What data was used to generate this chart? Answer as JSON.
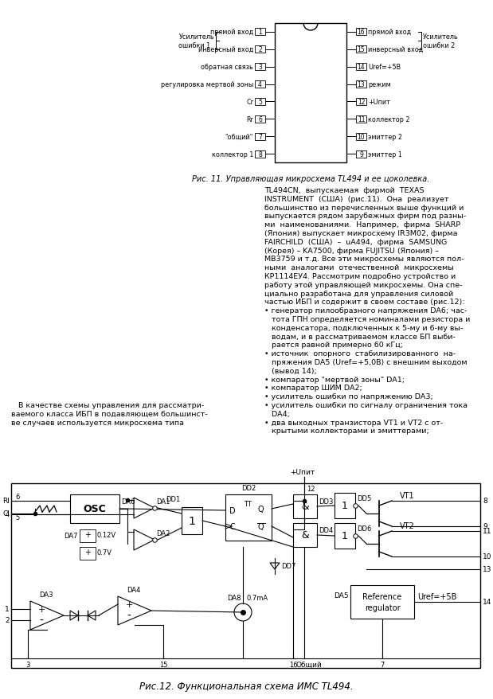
{
  "page_bg": "#ffffff",
  "title1": "Рис. 11. Управляющая микросхема TL494 и ее цоколевка.",
  "title2": "Рис.12. Функциональная схема ИМС TL494.",
  "left_pins": [
    "прямой вход",
    "инверсный вход",
    "обратная связь",
    "регулировка мертвой зоны",
    "Cr",
    "Rr",
    "\"общий\"",
    "коллектор 1"
  ],
  "right_pins": [
    "прямой вход",
    "инверсный вход",
    "Uref=+5B",
    "режим",
    "+Uпит",
    "коллектор 2",
    "эмиттер 2",
    "эмиттер 1"
  ],
  "left_pin_nums": [
    1,
    2,
    3,
    4,
    5,
    6,
    7,
    8
  ],
  "right_pin_nums": [
    16,
    15,
    14,
    13,
    12,
    11,
    10,
    9
  ],
  "left_label": "Усилитель\nошибки 1",
  "right_label": "Усилитель\nошибки 2",
  "body_text_lines": [
    "TL494CN,  выпускаемая  фирмой  TEXAS",
    "INSTRUMENT  (США)  (рис.11).  Она  реализует",
    "большинство из перечисленных выше функций и",
    "выпускается рядом зарубежных фирм под разны-",
    "ми  наименованиями.  Например,  фирма  SHARP",
    "(Япония) выпускает микросхему IR3M02, фирма",
    "FAIRCHILD  (США)  –  uA494,  фирма  SAMSUNG",
    "(Корея) – KA7500, фирма FUJITSU (Япония) –",
    "MB3759 и т.д. Все эти микросхемы являются пол-",
    "ными  аналогами  отечественной  микросхемы",
    "КР1114ЕУ4. Рассмотрим подробно устройство и",
    "работу этой управляющей микросхемы. Она спе-",
    "циально разработана для управления силовой",
    "частью ИБП и содержит в своем составе (рис.12):",
    "• генератор пилообразного напряжения DA6; час-",
    "   тота ГПН определяется номиналами резистора и",
    "   конденсатора, подключенных к 5-му и 6-му вы-",
    "   водам, и в рассматриваемом классе БП выби-",
    "   рается равной примерно 60 кГц;",
    "• источник  опорного  стабилизированного  на-",
    "   пряжения DA5 (Uref=+5,0В) с внешним выходом",
    "   (вывод 14);",
    "• компаратор \"мертвой зоны\" DA1;",
    "• компаратор ШИМ DA2;",
    "• усилитель ошибки по напряжению DA3;",
    "• усилитель ошибки по сигналу ограничения тока",
    "   DA4;",
    "• два выходных транзистора VT1 и VT2 с от-",
    "   крытыми коллекторами и эмиттерами;"
  ],
  "left_text_lines": [
    "   В качестве схемы управления для рассматри-",
    "ваемого класса ИБП в подавляющем большинст-",
    "ве случаев используется микросхема типа"
  ]
}
